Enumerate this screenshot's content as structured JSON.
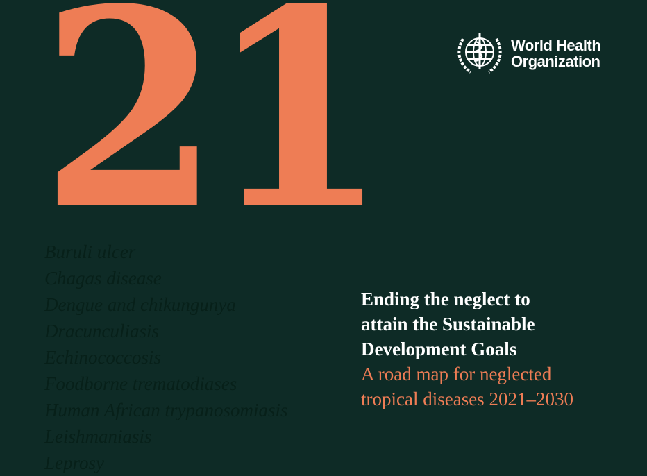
{
  "cover": {
    "number": "21",
    "accent_color": "#ee7d55",
    "background_color": "#0e2b26",
    "diseases": [
      "Buruli ulcer",
      "Chagas disease",
      "Dengue and chikungunya",
      "Dracunculiasis",
      "Echinococcosis",
      "Foodborne trematodiases",
      "Human African trypanosomiasis",
      "Leishmaniasis",
      "Leprosy"
    ],
    "logo": {
      "icon": "who-emblem-icon",
      "line1": "World Health",
      "line2": "Organization"
    },
    "title_lines": [
      "Ending the neglect to",
      "attain the Sustainable",
      "Development Goals"
    ],
    "subtitle_lines": [
      "A road map for neglected",
      "tropical diseases 2021–2030"
    ]
  }
}
